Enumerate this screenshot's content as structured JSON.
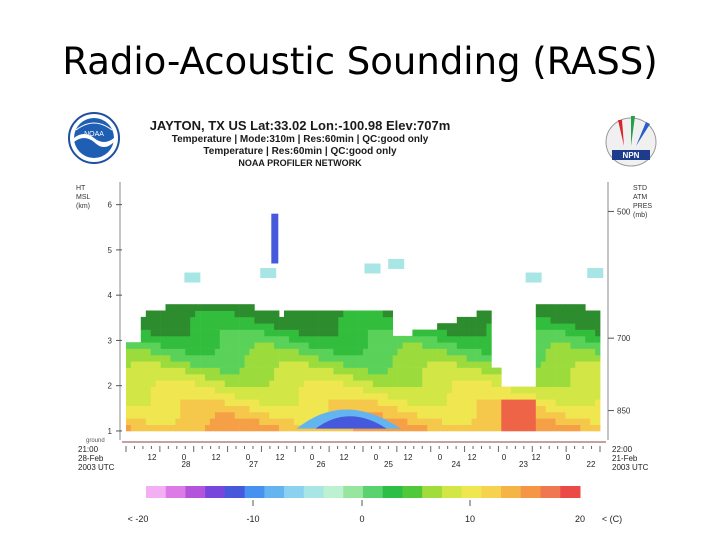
{
  "slide": {
    "title": "Radio-Acoustic Sounding (RASS)"
  },
  "header": {
    "line1": "JAYTON, TX US  Lat:33.02  Lon:-100.98  Elev:707m",
    "line2": "Temperature | Mode:310m | Res:60min | QC:good only",
    "line3": "Temperature | Res:60min | QC:good only",
    "line4": "NOAA PROFILER NETWORK"
  },
  "logos": {
    "left": "NOAA",
    "right": "NPN"
  },
  "colors": {
    "title": "#000000",
    "background": "#ffffff"
  },
  "chart_data": {
    "type": "heatmap",
    "y_left": {
      "label": [
        "HT",
        "MSL",
        "(km)"
      ],
      "ticks": [
        1,
        2,
        3,
        4,
        5,
        6
      ],
      "ylim": [
        0.8,
        6.5
      ]
    },
    "y_right": {
      "label": [
        "STD",
        "ATM",
        "PRES",
        "(mb)"
      ],
      "ticks": [
        {
          "label": "500",
          "height_km": 5.85
        },
        {
          "label": "700",
          "height_km": 3.05
        },
        {
          "label": "850",
          "height_km": 1.45
        }
      ]
    },
    "ground_label": "ground",
    "x": {
      "start_time": "21:00",
      "start_date": "28-Feb",
      "start_year": "2003 UTC",
      "end_time": "22:00",
      "end_date": "21-Feb",
      "end_year": "2003 UTC",
      "hour_labels": [
        "12",
        "0",
        "12",
        "0",
        "12",
        "0",
        "12",
        "0",
        "12",
        "0",
        "12",
        "0",
        "12",
        "0"
      ],
      "day_labels": [
        "28",
        "27",
        "26",
        "25",
        "24",
        "23",
        "22"
      ]
    },
    "colorbar": {
      "labels": [
        "< -20",
        "-10",
        "0",
        "10",
        "20",
        "< (C)"
      ],
      "colors": [
        "#f4aef4",
        "#dc7ae6",
        "#b454dc",
        "#7846dc",
        "#4658dc",
        "#4692f0",
        "#64b4f0",
        "#8cd2f0",
        "#a8e6e6",
        "#bef0d2",
        "#96e6a0",
        "#5ad26e",
        "#2dbe46",
        "#50c83c",
        "#a0dc3c",
        "#d2e646",
        "#f0e650",
        "#f5d250",
        "#f5b446",
        "#f59646",
        "#f07850",
        "#ec4a46"
      ]
    }
  }
}
